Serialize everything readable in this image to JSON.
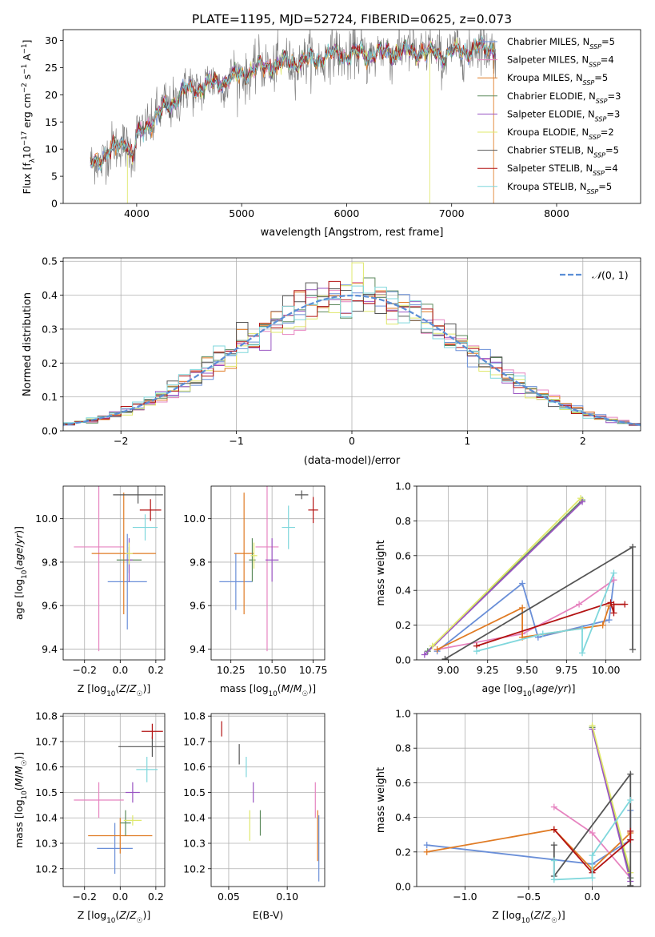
{
  "figure": {
    "title": "PLATE=1195, MJD=52724, FIBERID=0625, z=0.073"
  },
  "colors": {
    "Chabrier MILES": "#6a8fd8",
    "Salpeter MILES": "#e684c0",
    "Kroupa MILES": "#e07b24",
    "Chabrier ELODIE": "#5d8a5d",
    "Salpeter ELODIE": "#9a55c2",
    "Kroupa ELODIE": "#dfe86b",
    "Chabrier STELIB": "#555555",
    "Salpeter STELIB": "#b31313",
    "Kroupa STELIB": "#7fd7dc"
  },
  "chart_data": [
    {
      "id": "spectrum",
      "type": "line",
      "xlabel": "wavelength [Angstrom, rest frame]",
      "ylabel": "Flux [f_λ 10^-17 erg cm^-2 s^-1 A^-1]",
      "xlim": [
        3300,
        8800
      ],
      "ylim": [
        0,
        32
      ],
      "xticks": [
        4000,
        5000,
        6000,
        7000,
        8000
      ],
      "yticks": [
        0,
        5,
        10,
        15,
        20,
        25,
        30
      ],
      "legend_position": "right",
      "data_color": "#777777",
      "legend": [
        {
          "model": "Chabrier MILES",
          "n": "5"
        },
        {
          "model": "Salpeter MILES",
          "n": "4"
        },
        {
          "model": "Kroupa MILES",
          "n": "5"
        },
        {
          "model": "Chabrier ELODIE",
          "n": "3"
        },
        {
          "model": "Salpeter ELODIE",
          "n": "3"
        },
        {
          "model": "Kroupa ELODIE",
          "n": "2"
        },
        {
          "model": "Chabrier STELIB",
          "n": "5"
        },
        {
          "model": "Salpeter STELIB",
          "n": "4"
        },
        {
          "model": "Kroupa STELIB",
          "n": "5"
        }
      ],
      "continuum": [
        [
          3550,
          7
        ],
        [
          3700,
          9
        ],
        [
          3800,
          10
        ],
        [
          3900,
          12
        ],
        [
          3960,
          8
        ],
        [
          4000,
          12
        ],
        [
          4100,
          14.5
        ],
        [
          4300,
          18
        ],
        [
          4500,
          21
        ],
        [
          4700,
          22
        ],
        [
          4900,
          23
        ],
        [
          5100,
          24.5
        ],
        [
          5300,
          25.5
        ],
        [
          5500,
          26
        ],
        [
          5700,
          26.5
        ],
        [
          5900,
          27.5
        ],
        [
          6100,
          27.5
        ],
        [
          6300,
          27.5
        ],
        [
          6500,
          28
        ],
        [
          6700,
          28
        ],
        [
          6900,
          27.5
        ],
        [
          7100,
          28
        ],
        [
          7400,
          29
        ]
      ],
      "drops": [
        {
          "model": "Kroupa ELODIE",
          "x": 3915
        },
        {
          "model": "Kroupa ELODIE",
          "x": 6790
        },
        {
          "model": "Kroupa MILES",
          "x": 7400
        },
        {
          "model": "Salpeter STELIB",
          "x": 7420
        }
      ]
    },
    {
      "id": "residuals",
      "type": "histogram",
      "xlabel": "(data-model)/error",
      "ylabel": "Normed distribution",
      "xlim": [
        -2.5,
        2.5
      ],
      "ylim": [
        0,
        0.51
      ],
      "xticks": [
        -2,
        -1,
        0,
        1,
        2
      ],
      "yticks": [
        0.0,
        0.1,
        0.2,
        0.3,
        0.4,
        0.5
      ],
      "grid": true,
      "legend_position": "top-right",
      "normal_label": "N(0,1)",
      "normal_color": "#5b8ed6"
    },
    {
      "id": "age-Z",
      "type": "scatter",
      "xlabel": "Z [log10(Z/Z☉)]",
      "ylabel": "age [log10(age/yr)]",
      "xlim": [
        -0.32,
        0.25
      ],
      "ylim": [
        9.35,
        10.15
      ],
      "xticks": [
        -0.2,
        0.0,
        0.2
      ],
      "yticks": [
        9.4,
        9.6,
        9.8,
        10.0
      ],
      "grid": true,
      "points": [
        {
          "model": "Chabrier MILES",
          "x": 0.04,
          "xerr": 0.11,
          "y": 9.71,
          "yerr": 0.22
        },
        {
          "model": "Salpeter MILES",
          "x": -0.12,
          "xerr": 0.14,
          "y": 9.87,
          "yerr": 0.48
        },
        {
          "model": "Kroupa MILES",
          "x": 0.02,
          "xerr": 0.18,
          "y": 9.84,
          "yerr": 0.28
        },
        {
          "model": "Chabrier ELODIE",
          "x": 0.05,
          "xerr": 0.07,
          "y": 9.81,
          "yerr": 0.06
        },
        {
          "model": "Salpeter ELODIE",
          "x": 0.05,
          "xerr": 0.02,
          "y": 9.81,
          "yerr": 0.1
        },
        {
          "model": "Kroupa ELODIE",
          "x": 0.05,
          "xerr": 0.02,
          "y": 9.84,
          "yerr": 0.05
        },
        {
          "model": "Chabrier STELIB",
          "x": 0.1,
          "xerr": 0.14,
          "y": 10.11,
          "yerr": 0.04
        },
        {
          "model": "Salpeter STELIB",
          "x": 0.17,
          "xerr": 0.06,
          "y": 10.04,
          "yerr": 0.05
        },
        {
          "model": "Kroupa STELIB",
          "x": 0.14,
          "xerr": 0.07,
          "y": 9.96,
          "yerr": 0.06
        }
      ]
    },
    {
      "id": "age-mass",
      "type": "scatter",
      "xlabel": "mass [log10(M/M☉)]",
      "ylabel": "",
      "xlim": [
        10.13,
        10.82
      ],
      "ylim": [
        9.35,
        10.15
      ],
      "xticks": [
        10.25,
        10.5,
        10.75
      ],
      "yticks": [
        9.4,
        9.6,
        9.8,
        10.0
      ],
      "grid": true,
      "points": [
        {
          "model": "Chabrier MILES",
          "x": 10.28,
          "xerr": 0.1,
          "y": 9.71,
          "yerr": 0.13
        },
        {
          "model": "Salpeter MILES",
          "x": 10.47,
          "xerr": 0.07,
          "y": 9.87,
          "yerr": 0.48
        },
        {
          "model": "Kroupa MILES",
          "x": 10.33,
          "xerr": 0.06,
          "y": 9.84,
          "yerr": 0.28
        },
        {
          "model": "Chabrier ELODIE",
          "x": 10.38,
          "xerr": 0.02,
          "y": 9.81,
          "yerr": 0.1
        },
        {
          "model": "Salpeter ELODIE",
          "x": 10.5,
          "xerr": 0.04,
          "y": 9.81,
          "yerr": 0.1
        },
        {
          "model": "Kroupa ELODIE",
          "x": 10.39,
          "xerr": 0.02,
          "y": 9.83,
          "yerr": 0.06
        },
        {
          "model": "Chabrier STELIB",
          "x": 10.68,
          "xerr": 0.04,
          "y": 10.11,
          "yerr": 0.02
        },
        {
          "model": "Salpeter STELIB",
          "x": 10.75,
          "xerr": 0.03,
          "y": 10.04,
          "yerr": 0.06
        },
        {
          "model": "Kroupa STELIB",
          "x": 10.6,
          "xerr": 0.04,
          "y": 9.96,
          "yerr": 0.1
        }
      ]
    },
    {
      "id": "massweight-age",
      "type": "line",
      "xlabel": "age [log10(age/yr)]",
      "ylabel": "mass weight",
      "xlim": [
        8.8,
        10.22
      ],
      "ylim": [
        0,
        1.0
      ],
      "xticks": [
        9.0,
        9.25,
        9.5,
        9.75,
        10.0
      ],
      "yticks": [
        0.0,
        0.2,
        0.4,
        0.6,
        0.8,
        1.0
      ],
      "grid": true,
      "series": [
        {
          "model": "Chabrier MILES",
          "x": [
            8.93,
            9.47,
            9.57,
            10.02,
            10.05
          ],
          "y": [
            0.05,
            0.44,
            0.13,
            0.23,
            0.46
          ]
        },
        {
          "model": "Salpeter MILES",
          "x": [
            8.93,
            9.47,
            9.83,
            10.05
          ],
          "y": [
            0.06,
            0.15,
            0.32,
            0.46
          ]
        },
        {
          "model": "Kroupa MILES",
          "x": [
            8.93,
            9.47,
            9.47,
            9.98,
            10.02
          ],
          "y": [
            0.06,
            0.3,
            0.13,
            0.2,
            0.31
          ]
        },
        {
          "model": "Chabrier ELODIE",
          "x": [
            8.87,
            9.85
          ],
          "y": [
            0.05,
            0.92
          ]
        },
        {
          "model": "Salpeter ELODIE",
          "x": [
            8.85,
            9.85
          ],
          "y": [
            0.03,
            0.91
          ]
        },
        {
          "model": "Kroupa ELODIE",
          "x": [
            8.9,
            9.84
          ],
          "y": [
            0.08,
            0.93
          ]
        },
        {
          "model": "Chabrier STELIB",
          "x": [
            8.98,
            10.17,
            10.17
          ],
          "y": [
            0.005,
            0.65,
            0.06
          ]
        },
        {
          "model": "Salpeter STELIB",
          "x": [
            9.18,
            10.03,
            10.05,
            10.05,
            10.12
          ],
          "y": [
            0.08,
            0.33,
            0.27,
            0.32,
            0.32
          ]
        },
        {
          "model": "Kroupa STELIB",
          "x": [
            9.18,
            9.6,
            9.85,
            9.85,
            10.05
          ],
          "y": [
            0.05,
            0.15,
            0.18,
            0.04,
            0.5
          ]
        }
      ]
    },
    {
      "id": "mass-Z",
      "type": "scatter",
      "xlabel": "Z [log10(Z/Z☉)]",
      "ylabel": "mass [log10(M/M☉)]",
      "xlim": [
        -0.32,
        0.25
      ],
      "ylim": [
        10.13,
        10.81
      ],
      "xticks": [
        -0.2,
        0.0,
        0.2
      ],
      "yticks": [
        10.2,
        10.3,
        10.4,
        10.5,
        10.6,
        10.7,
        10.8
      ],
      "grid": true,
      "points": [
        {
          "model": "Chabrier MILES",
          "x": -0.03,
          "xerr": 0.1,
          "y": 10.28,
          "yerr": 0.1
        },
        {
          "model": "Salpeter MILES",
          "x": -0.12,
          "xerr": 0.14,
          "y": 10.47,
          "yerr": 0.07
        },
        {
          "model": "Kroupa MILES",
          "x": 0.0,
          "xerr": 0.18,
          "y": 10.33,
          "yerr": 0.07
        },
        {
          "model": "Chabrier ELODIE",
          "x": 0.03,
          "xerr": 0.03,
          "y": 10.38,
          "yerr": 0.05
        },
        {
          "model": "Salpeter ELODIE",
          "x": 0.07,
          "xerr": 0.04,
          "y": 10.5,
          "yerr": 0.04
        },
        {
          "model": "Kroupa ELODIE",
          "x": 0.07,
          "xerr": 0.05,
          "y": 10.39,
          "yerr": 0.02
        },
        {
          "model": "Chabrier STELIB",
          "x": 0.18,
          "xerr": 0.19,
          "y": 10.68,
          "yerr": 0.04
        },
        {
          "model": "Salpeter STELIB",
          "x": 0.18,
          "xerr": 0.06,
          "y": 10.74,
          "yerr": 0.03
        },
        {
          "model": "Kroupa STELIB",
          "x": 0.15,
          "xerr": 0.06,
          "y": 10.59,
          "yerr": 0.05
        }
      ]
    },
    {
      "id": "mass-EBV",
      "type": "scatter",
      "xlabel": "E(B-V)",
      "ylabel": "",
      "xlim": [
        0.035,
        0.132
      ],
      "ylim": [
        10.13,
        10.81
      ],
      "xticks": [
        0.05,
        0.1
      ],
      "yticks": [
        10.2,
        10.3,
        10.4,
        10.5,
        10.6,
        10.7,
        10.8
      ],
      "grid": true,
      "points": [
        {
          "model": "Chabrier MILES",
          "x": 0.127,
          "y": 10.28,
          "yerr": 0.13
        },
        {
          "model": "Salpeter MILES",
          "x": 0.124,
          "y": 10.47,
          "yerr": 0.07
        },
        {
          "model": "Kroupa MILES",
          "x": 0.126,
          "y": 10.33,
          "yerr": 0.1
        },
        {
          "model": "Chabrier ELODIE",
          "x": 0.077,
          "y": 10.38,
          "yerr": 0.05
        },
        {
          "model": "Salpeter ELODIE",
          "x": 0.071,
          "y": 10.5,
          "yerr": 0.04
        },
        {
          "model": "Kroupa ELODIE",
          "x": 0.068,
          "y": 10.37,
          "yerr": 0.06
        },
        {
          "model": "Chabrier STELIB",
          "x": 0.059,
          "y": 10.65,
          "yerr": 0.04
        },
        {
          "model": "Salpeter STELIB",
          "x": 0.044,
          "y": 10.75,
          "yerr": 0.03
        },
        {
          "model": "Kroupa STELIB",
          "x": 0.065,
          "y": 10.6,
          "yerr": 0.04
        }
      ]
    },
    {
      "id": "massweight-Z",
      "type": "line",
      "xlabel": "Z [log10(Z/Z☉)]",
      "ylabel": "mass weight",
      "xlim": [
        -1.38,
        0.38
      ],
      "ylim": [
        0,
        1.0
      ],
      "xticks": [
        -1.0,
        -0.5,
        0.0
      ],
      "yticks": [
        0.0,
        0.2,
        0.4,
        0.6,
        0.8,
        1.0
      ],
      "grid": true,
      "series": [
        {
          "model": "Chabrier MILES",
          "x": [
            -1.3,
            0.0,
            0.3,
            0.3
          ],
          "y": [
            0.24,
            0.13,
            0.27,
            0.44
          ]
        },
        {
          "model": "Salpeter MILES",
          "x": [
            -0.3,
            0.0,
            0.3
          ],
          "y": [
            0.46,
            0.31,
            0.05
          ]
        },
        {
          "model": "Kroupa MILES",
          "x": [
            -1.3,
            -0.3,
            0.0,
            0.3
          ],
          "y": [
            0.2,
            0.33,
            0.1,
            0.31
          ]
        },
        {
          "model": "Chabrier ELODIE",
          "x": [
            0.0,
            0.3
          ],
          "y": [
            0.92,
            0.05
          ]
        },
        {
          "model": "Salpeter ELODIE",
          "x": [
            0.0,
            0.3
          ],
          "y": [
            0.91,
            0.03
          ]
        },
        {
          "model": "Kroupa ELODIE",
          "x": [
            0.0,
            0.3
          ],
          "y": [
            0.93,
            0.08
          ]
        },
        {
          "model": "Chabrier STELIB",
          "x": [
            -0.3,
            -0.3,
            0.3,
            0.3
          ],
          "y": [
            0.24,
            0.06,
            0.65,
            0.005
          ]
        },
        {
          "model": "Salpeter STELIB",
          "x": [
            -0.3,
            0.0,
            0.3,
            0.3
          ],
          "y": [
            0.33,
            0.08,
            0.27,
            0.32
          ]
        },
        {
          "model": "Kroupa STELIB",
          "x": [
            -0.3,
            -0.3,
            0.0,
            0.0,
            0.3
          ],
          "y": [
            0.15,
            0.04,
            0.05,
            0.18,
            0.5
          ]
        }
      ]
    }
  ]
}
